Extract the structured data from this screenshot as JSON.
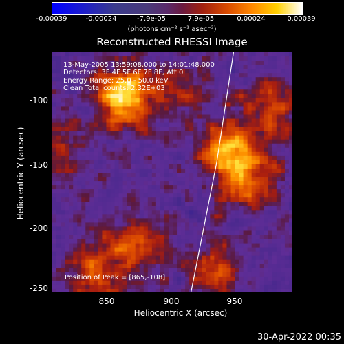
{
  "colorbar": {
    "ticks": [
      "-0.00039",
      "-0.00024",
      "-7.9e-05",
      "7.9e-05",
      "0.00024",
      "0.00039"
    ],
    "unit_label": "(photons cm⁻² s⁻¹ asec⁻²)"
  },
  "title": "Reconstructed RHESSI Image",
  "info": {
    "time": "13-May-2005 13:59:08.000 to 14:01:48.000",
    "detectors": "Detectors: 3F 4F 5F 6F 7F 8F, Att 0",
    "energy": "Energy Range: 25.0 - 50.0 keV",
    "clean": "Clean     Total counts: 2.32E+03"
  },
  "peak": "Position of Peak = [865,-108]",
  "footer": "30-Apr-2022 00:35",
  "chart_data": {
    "type": "heatmap",
    "title": "Reconstructed RHESSI Image",
    "xlabel": "Heliocentric X (arcsec)",
    "ylabel": "Heliocentric Y (arcsec)",
    "xlim": [
      808,
      994
    ],
    "ylim": [
      -251,
      -65
    ],
    "xticks": [
      "850",
      "900",
      "950"
    ],
    "yticks": [
      "-100",
      "-150",
      "-200",
      "-250"
    ],
    "colorbar_range": [
      -0.00039,
      0.00039
    ],
    "colormap": "blue-purple-red-yellow-white",
    "peak": [
      865,
      -108
    ],
    "sources": [
      {
        "x": 863,
        "y": -100,
        "strength": 1.0
      },
      {
        "x": 945,
        "y": -140,
        "strength": 0.85
      },
      {
        "x": 960,
        "y": -165,
        "strength": 0.6
      },
      {
        "x": 980,
        "y": -110,
        "strength": 0.5
      },
      {
        "x": 840,
        "y": -235,
        "strength": 0.55
      },
      {
        "x": 875,
        "y": -215,
        "strength": 0.5
      },
      {
        "x": 935,
        "y": -235,
        "strength": 0.5
      },
      {
        "x": 820,
        "y": -140,
        "strength": 0.35
      },
      {
        "x": 905,
        "y": -95,
        "strength": 0.3
      }
    ],
    "limb_curve": [
      [
        948,
        -65
      ],
      [
        935,
        -150
      ],
      [
        915,
        -251
      ]
    ]
  }
}
